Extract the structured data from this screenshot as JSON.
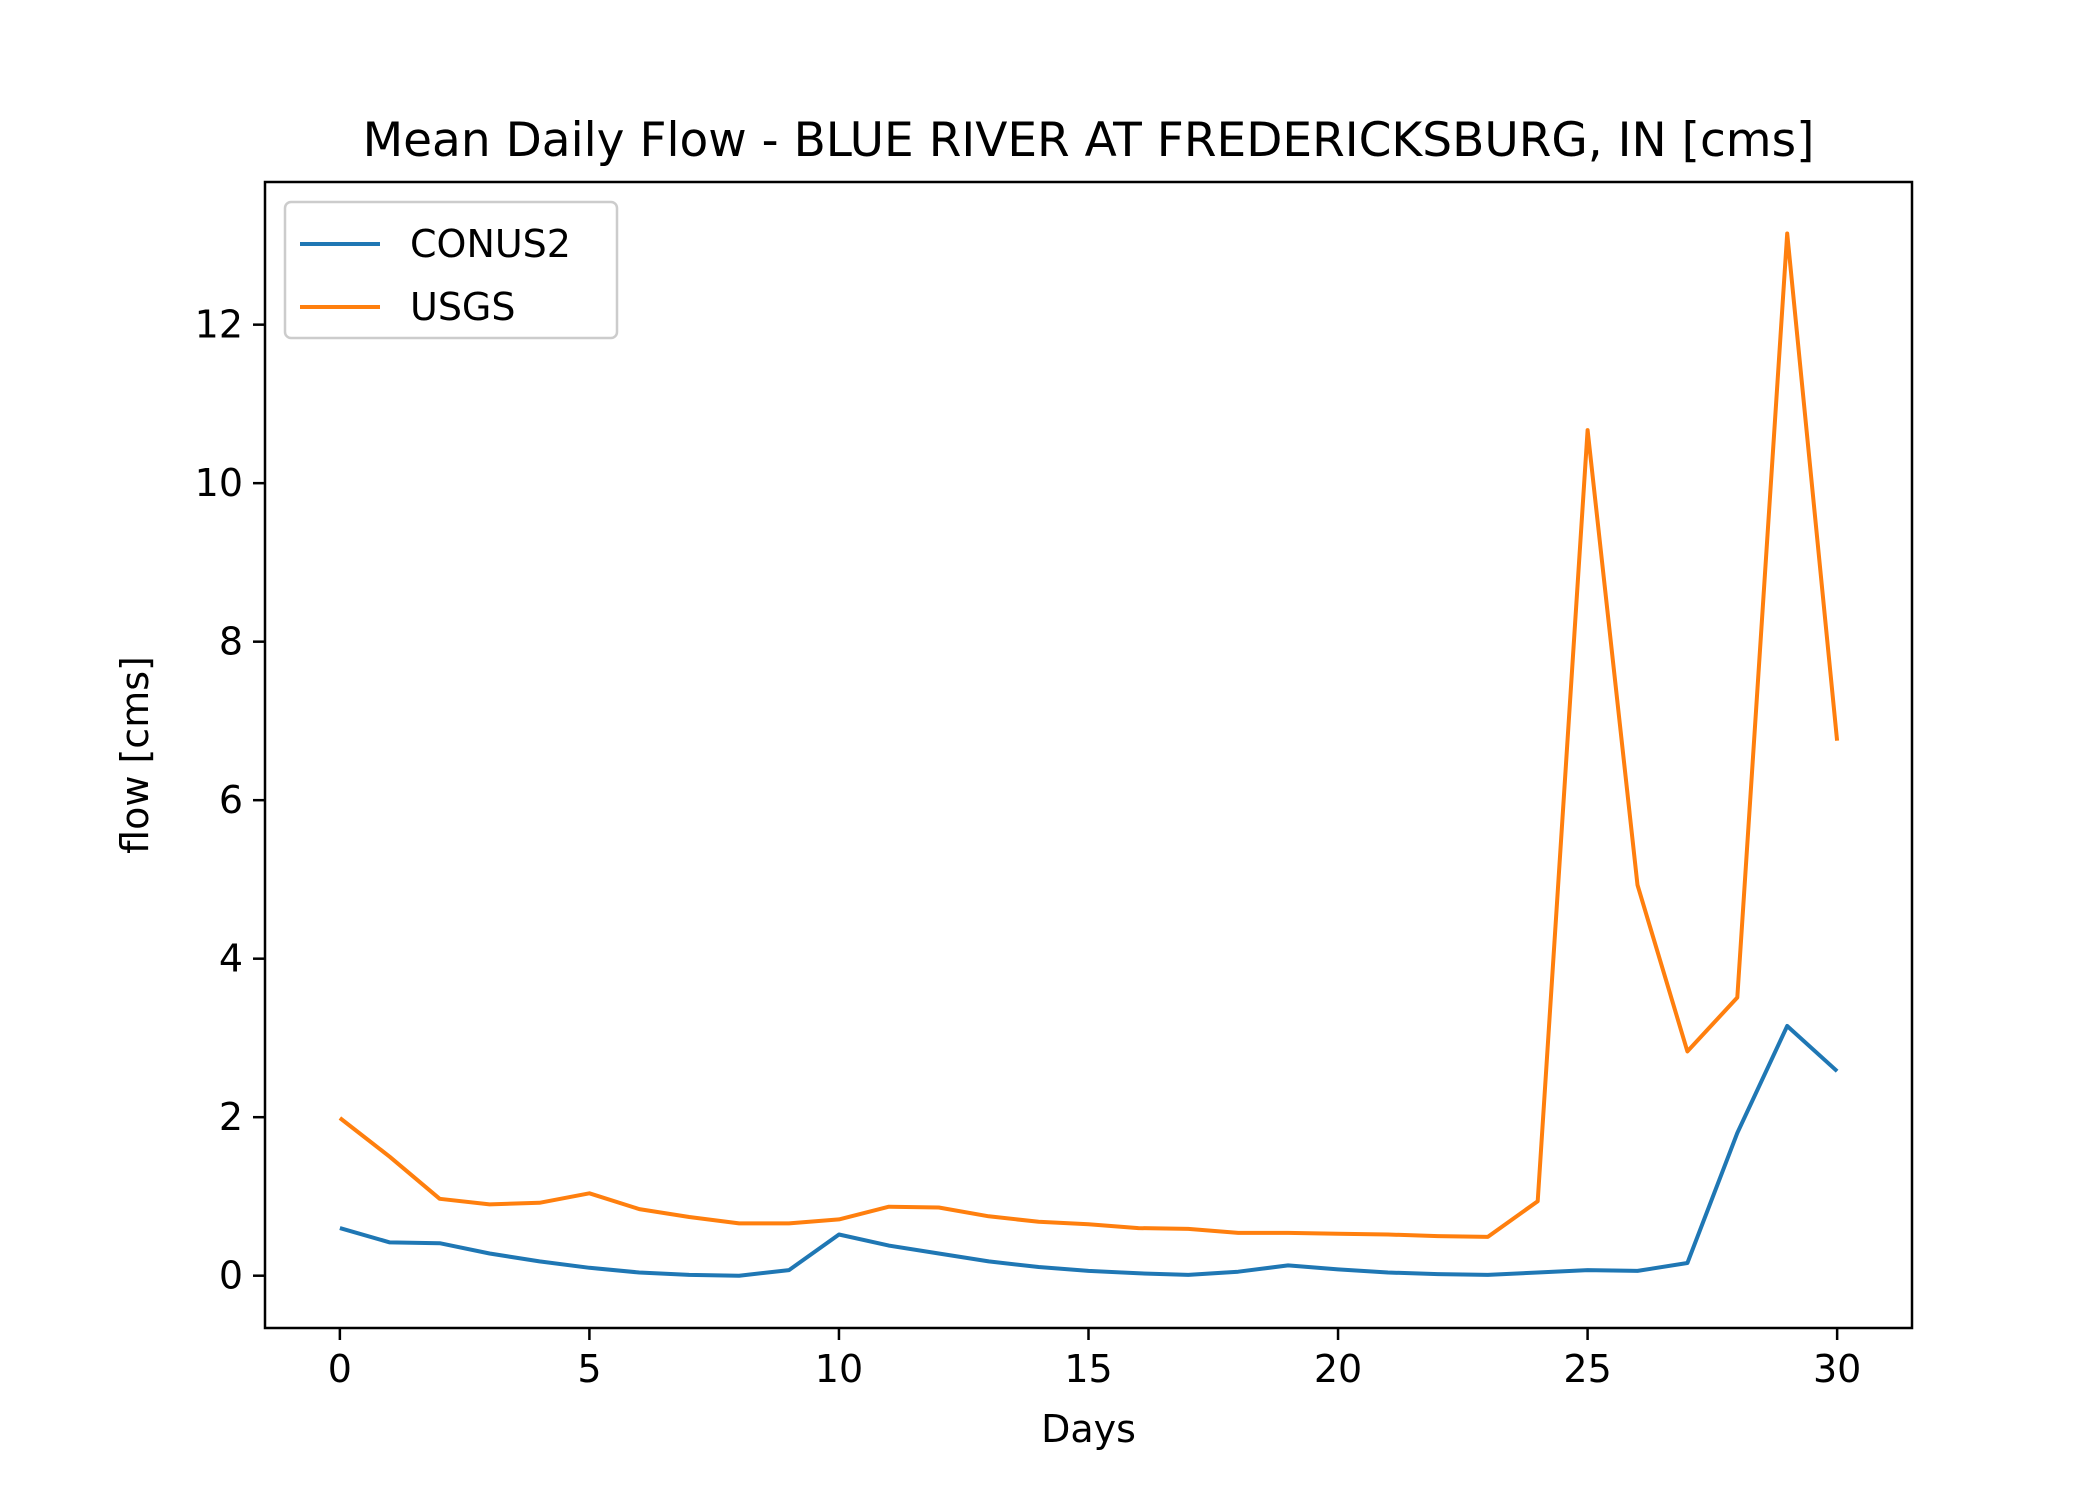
{
  "chart_data": {
    "type": "line",
    "title": "Mean Daily Flow - BLUE RIVER AT FREDERICKSBURG, IN [cms]",
    "xlabel": "Days",
    "ylabel": "flow [cms]",
    "xlim": [
      -1.5,
      31.5
    ],
    "ylim": [
      -0.66,
      13.8
    ],
    "xticks": [
      0,
      5,
      10,
      15,
      20,
      25,
      30
    ],
    "yticks": [
      0,
      2,
      4,
      6,
      8,
      10,
      12
    ],
    "grid": false,
    "legend_position": "upper-left",
    "x": [
      0,
      1,
      2,
      3,
      4,
      5,
      6,
      7,
      8,
      9,
      10,
      11,
      12,
      13,
      14,
      15,
      16,
      17,
      18,
      19,
      20,
      21,
      22,
      23,
      24,
      25,
      26,
      27,
      28,
      29,
      30
    ],
    "series": [
      {
        "name": "CONUS2",
        "color": "#1f77b4",
        "values": [
          0.6,
          0.42,
          0.41,
          0.28,
          0.18,
          0.1,
          0.04,
          0.01,
          0.0,
          0.07,
          0.52,
          0.38,
          0.28,
          0.18,
          0.11,
          0.06,
          0.03,
          0.01,
          0.05,
          0.13,
          0.08,
          0.04,
          0.02,
          0.01,
          0.04,
          0.07,
          0.06,
          0.16,
          1.8,
          3.15,
          2.58
        ]
      },
      {
        "name": "USGS",
        "color": "#ff7f0e",
        "values": [
          1.99,
          1.5,
          0.97,
          0.9,
          0.92,
          1.04,
          0.84,
          0.74,
          0.66,
          0.66,
          0.71,
          0.87,
          0.86,
          0.75,
          0.68,
          0.65,
          0.6,
          0.59,
          0.54,
          0.54,
          0.53,
          0.52,
          0.5,
          0.49,
          0.94,
          10.67,
          4.93,
          2.83,
          3.51,
          13.15,
          6.75
        ]
      }
    ]
  }
}
